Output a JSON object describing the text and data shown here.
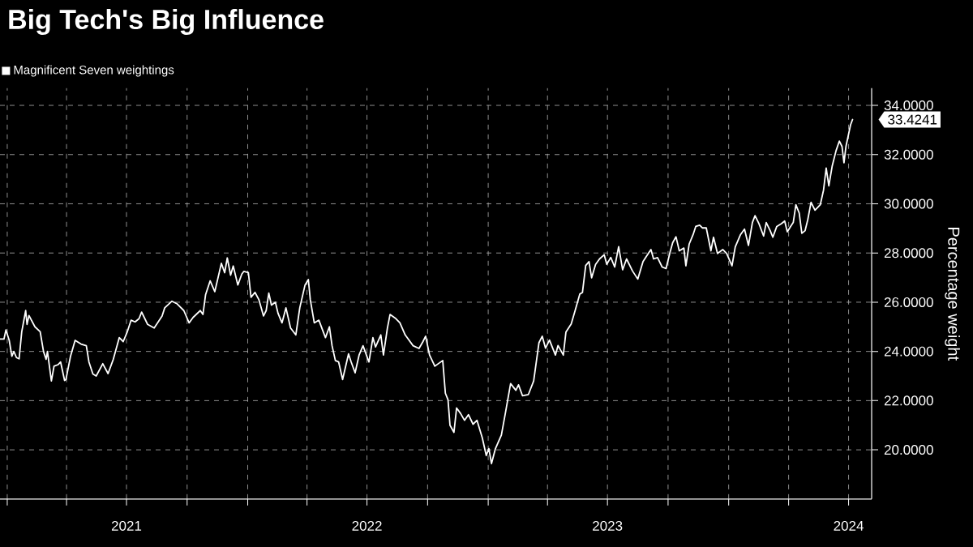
{
  "chart_data": {
    "type": "line",
    "title": "Big Tech's Big Influence",
    "ylabel": "Percentage weight",
    "series": [
      {
        "name": "Magnificent Seven weightings",
        "color": "#ffffff",
        "x": [
          "2020-12-21",
          "2020-12-27",
          "2020-12-30",
          "2021-01-04",
          "2021-01-08",
          "2021-01-11",
          "2021-01-15",
          "2021-01-19",
          "2021-01-23",
          "2021-01-29",
          "2021-01-31",
          "2021-02-03",
          "2021-02-12",
          "2021-02-20",
          "2021-02-25",
          "2021-03-01",
          "2021-03-03",
          "2021-03-09",
          "2021-03-13",
          "2021-03-19",
          "2021-03-23",
          "2021-03-29",
          "2021-03-31",
          "2021-04-07",
          "2021-04-14",
          "2021-04-23",
          "2021-05-01",
          "2021-05-05",
          "2021-05-11",
          "2021-05-16",
          "2021-05-26",
          "2021-06-03",
          "2021-06-11",
          "2021-06-20",
          "2021-06-26",
          "2021-07-02",
          "2021-07-08",
          "2021-07-14",
          "2021-07-20",
          "2021-07-24",
          "2021-08-02",
          "2021-08-12",
          "2021-08-24",
          "2021-08-28",
          "2021-09-08",
          "2021-09-16",
          "2021-09-26",
          "2021-10-04",
          "2021-10-10",
          "2021-10-21",
          "2021-10-25",
          "2021-10-29",
          "2021-11-05",
          "2021-11-12",
          "2021-11-22",
          "2021-11-27",
          "2021-12-01",
          "2021-12-06",
          "2021-12-10",
          "2021-12-17",
          "2021-12-23",
          "2021-12-26",
          "2022-01-02",
          "2022-01-06",
          "2022-01-12",
          "2022-01-18",
          "2022-01-25",
          "2022-01-29",
          "2022-02-02",
          "2022-02-06",
          "2022-02-12",
          "2022-02-16",
          "2022-02-22",
          "2022-02-28",
          "2022-03-07",
          "2022-03-15",
          "2022-03-21",
          "2022-03-29",
          "2022-04-03",
          "2022-04-06",
          "2022-04-12",
          "2022-04-19",
          "2022-04-25",
          "2022-04-29",
          "2022-05-05",
          "2022-05-09",
          "2022-05-14",
          "2022-05-19",
          "2022-05-25",
          "2022-06-03",
          "2022-06-07",
          "2022-06-13",
          "2022-06-19",
          "2022-06-25",
          "2022-07-04",
          "2022-07-10",
          "2022-07-14",
          "2022-07-22",
          "2022-07-26",
          "2022-08-01",
          "2022-08-05",
          "2022-08-14",
          "2022-08-20",
          "2022-08-28",
          "2022-09-09",
          "2022-09-18",
          "2022-09-24",
          "2022-09-28",
          "2022-10-04",
          "2022-10-12",
          "2022-10-24",
          "2022-10-28",
          "2022-11-01",
          "2022-11-04",
          "2022-11-10",
          "2022-11-14",
          "2022-11-20",
          "2022-11-26",
          "2022-12-02",
          "2022-12-09",
          "2022-12-15",
          "2022-12-23",
          "2022-12-29",
          "2023-01-02",
          "2023-01-06",
          "2023-01-12",
          "2023-01-21",
          "2023-01-27",
          "2023-02-04",
          "2023-02-12",
          "2023-02-16",
          "2023-02-22",
          "2023-03-03",
          "2023-03-11",
          "2023-03-19",
          "2023-03-24",
          "2023-03-29",
          "2023-04-04",
          "2023-04-13",
          "2023-04-17",
          "2023-04-25",
          "2023-04-29",
          "2023-05-07",
          "2023-05-13",
          "2023-05-20",
          "2023-05-24",
          "2023-05-29",
          "2023-06-03",
          "2023-06-07",
          "2023-06-13",
          "2023-06-19",
          "2023-06-26",
          "2023-06-30",
          "2023-07-06",
          "2023-07-12",
          "2023-07-18",
          "2023-07-24",
          "2023-07-30",
          "2023-08-08",
          "2023-08-16",
          "2023-08-24",
          "2023-09-01",
          "2023-09-05",
          "2023-09-09",
          "2023-09-15",
          "2023-09-22",
          "2023-09-28",
          "2023-10-04",
          "2023-10-08",
          "2023-10-13",
          "2023-10-18",
          "2023-10-25",
          "2023-10-28",
          "2023-11-02",
          "2023-11-08",
          "2023-11-12",
          "2023-11-18",
          "2023-11-22",
          "2023-11-28",
          "2023-12-05",
          "2023-12-09",
          "2023-12-15",
          "2023-12-23",
          "2023-12-29",
          "2024-01-06",
          "2024-01-11",
          "2024-01-19",
          "2024-01-25",
          "2024-01-31",
          "2024-02-06",
          "2024-02-10",
          "2024-02-16",
          "2024-02-23",
          "2024-02-27",
          "2024-03-04",
          "2024-03-08",
          "2024-03-14",
          "2024-03-21",
          "2024-03-26",
          "2024-03-30",
          "2024-04-04",
          "2024-04-08",
          "2024-04-12",
          "2024-04-17",
          "2024-04-21",
          "2024-04-26",
          "2024-04-30",
          "2024-05-05",
          "2024-05-11",
          "2024-05-19",
          "2024-05-24",
          "2024-05-28",
          "2024-06-01",
          "2024-06-06",
          "2024-06-12",
          "2024-06-17",
          "2024-06-21",
          "2024-06-24",
          "2024-06-27",
          "2024-07-04",
          "2024-07-07"
        ],
        "values": [
          24.5,
          24.5,
          24.87,
          24.45,
          23.8,
          24.0,
          23.75,
          23.7,
          24.8,
          25.66,
          25.1,
          25.46,
          25.0,
          24.8,
          24.0,
          23.68,
          24.0,
          22.8,
          23.4,
          23.46,
          23.57,
          22.82,
          22.85,
          23.8,
          24.45,
          24.3,
          24.23,
          23.57,
          23.08,
          23.0,
          23.5,
          23.1,
          23.68,
          24.56,
          24.4,
          24.78,
          25.27,
          25.2,
          25.33,
          25.6,
          25.1,
          24.95,
          25.44,
          25.77,
          26.04,
          25.93,
          25.66,
          25.16,
          25.38,
          25.66,
          25.5,
          26.3,
          26.87,
          26.43,
          27.58,
          27.2,
          27.8,
          27.1,
          27.47,
          26.7,
          27.14,
          27.25,
          27.2,
          26.2,
          26.4,
          26.1,
          25.44,
          25.66,
          26.37,
          25.88,
          26.0,
          25.55,
          25.16,
          25.77,
          24.95,
          24.67,
          25.77,
          26.7,
          26.92,
          26.1,
          25.16,
          25.27,
          24.84,
          24.56,
          25.0,
          24.23,
          23.63,
          23.57,
          22.86,
          23.9,
          23.57,
          23.13,
          23.85,
          24.23,
          23.57,
          24.56,
          24.18,
          24.67,
          23.85,
          24.95,
          25.5,
          25.33,
          25.16,
          24.67,
          24.23,
          24.12,
          24.4,
          24.62,
          23.85,
          23.4,
          23.63,
          22.3,
          22.03,
          21.0,
          20.71,
          21.7,
          21.48,
          21.2,
          21.43,
          21.04,
          21.2,
          20.49,
          19.77,
          20.05,
          19.44,
          20.05,
          20.6,
          21.48,
          22.69,
          22.42,
          22.64,
          22.2,
          22.25,
          22.8,
          24.35,
          24.62,
          24.13,
          24.46,
          23.85,
          24.24,
          23.85,
          24.79,
          25.12,
          25.67,
          26.33,
          26.39,
          27.49,
          27.65,
          26.99,
          27.54,
          27.76,
          27.93,
          27.54,
          27.82,
          27.43,
          28.26,
          27.32,
          27.76,
          27.27,
          26.94,
          27.65,
          27.98,
          28.14,
          27.76,
          27.81,
          27.43,
          27.37,
          28.03,
          28.42,
          28.66,
          28.09,
          28.2,
          27.48,
          28.36,
          28.75,
          29.08,
          29.13,
          29.02,
          29.02,
          28.09,
          28.64,
          27.98,
          28.14,
          27.98,
          27.48,
          28.25,
          28.75,
          28.97,
          28.31,
          29.24,
          29.52,
          29.19,
          28.69,
          29.24,
          28.91,
          28.64,
          29.08,
          29.19,
          29.3,
          28.86,
          29.08,
          29.24,
          29.96,
          29.63,
          28.8,
          28.91,
          29.35,
          30.06,
          29.74,
          29.96,
          30.56,
          31.45,
          30.73,
          31.52,
          32.16,
          32.55,
          32.33,
          31.67,
          32.33,
          33.21,
          33.4241
        ]
      }
    ],
    "xlim": [
      "2020-12-21",
      "2024-08-05"
    ],
    "xticks": [
      {
        "value": "2021-01-01",
        "label": null
      },
      {
        "value": "2021-04-01",
        "label": null
      },
      {
        "value": "2021-07-01",
        "label": "2021"
      },
      {
        "value": "2021-10-01",
        "label": null
      },
      {
        "value": "2022-01-01",
        "label": null
      },
      {
        "value": "2022-04-01",
        "label": null
      },
      {
        "value": "2022-07-01",
        "label": "2022"
      },
      {
        "value": "2022-10-01",
        "label": null
      },
      {
        "value": "2023-01-01",
        "label": null
      },
      {
        "value": "2023-04-01",
        "label": null
      },
      {
        "value": "2023-07-01",
        "label": "2023"
      },
      {
        "value": "2023-10-01",
        "label": null
      },
      {
        "value": "2024-01-01",
        "label": null
      },
      {
        "value": "2024-04-01",
        "label": null
      },
      {
        "value": "2024-07-01",
        "label": "2024"
      }
    ],
    "ylim": [
      18,
      34.7
    ],
    "yticks": [
      {
        "value": 20,
        "label": "20.0000"
      },
      {
        "value": 22,
        "label": "22.0000"
      },
      {
        "value": 24,
        "label": "24.0000"
      },
      {
        "value": 26,
        "label": "26.0000"
      },
      {
        "value": 28,
        "label": "28.0000"
      },
      {
        "value": 30,
        "label": "30.0000"
      },
      {
        "value": 32,
        "label": "32.0000"
      },
      {
        "value": 34,
        "label": "34.0000"
      }
    ],
    "annotations": [
      {
        "text": "33.4241",
        "x": "2024-07-07",
        "y": 33.4241
      }
    ],
    "grid": true,
    "legend": "top left",
    "marker": "none",
    "line_style": "solid"
  }
}
